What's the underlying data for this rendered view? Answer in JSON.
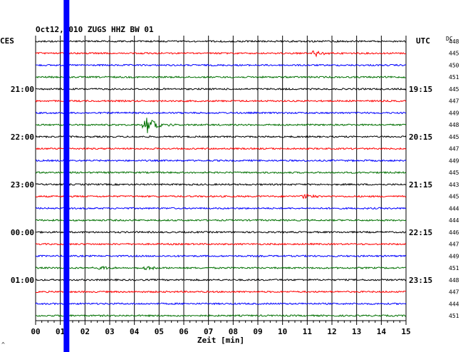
{
  "chart_data": {
    "type": "line",
    "title": "Oct12,2010   ZUGS HHZ BW 01",
    "left_zone": "CES",
    "right_zone": "UTC",
    "dc_label": "DC",
    "xlabel": "Zeit [min]",
    "x_ticks": [
      "00",
      "01",
      "02",
      "03",
      "04",
      "05",
      "06",
      "07",
      "08",
      "09",
      "10",
      "11",
      "12",
      "13",
      "14",
      "15"
    ],
    "xlim": [
      0,
      15
    ],
    "line_colors": [
      "#000000",
      "#ff0000",
      "#0000ff",
      "#007000"
    ],
    "left_time_labels": [
      {
        "trace": 4,
        "text": "21:00"
      },
      {
        "trace": 8,
        "text": "22:00"
      },
      {
        "trace": 12,
        "text": "23:00"
      },
      {
        "trace": 16,
        "text": "00:00"
      },
      {
        "trace": 20,
        "text": "01:00"
      }
    ],
    "right_time_labels": [
      {
        "trace": 4,
        "text": "19:15"
      },
      {
        "trace": 8,
        "text": "20:15"
      },
      {
        "trace": 12,
        "text": "21:15"
      },
      {
        "trace": 16,
        "text": "22:15"
      },
      {
        "trace": 20,
        "text": "23:15"
      }
    ],
    "dc_offsets": [
      "448",
      "445",
      "450",
      "451",
      "445",
      "447",
      "449",
      "448",
      "445",
      "447",
      "449",
      "445",
      "443",
      "445",
      "444",
      "444",
      "446",
      "447",
      "449",
      "451",
      "448",
      "447",
      "444",
      "451"
    ],
    "events": [
      {
        "trace": 1,
        "minute": 11.3,
        "amplitude": 5
      },
      {
        "trace": 7,
        "minute": 4.5,
        "amplitude": 13
      },
      {
        "trace": 13,
        "minute": 10.9,
        "amplitude": 4
      },
      {
        "trace": 19,
        "minute": 2.4,
        "amplitude": 4
      },
      {
        "trace": 19,
        "minute": 4.5,
        "amplitude": 3
      }
    ],
    "marker": {
      "color": "#0000ff",
      "minute": 1.25
    }
  }
}
